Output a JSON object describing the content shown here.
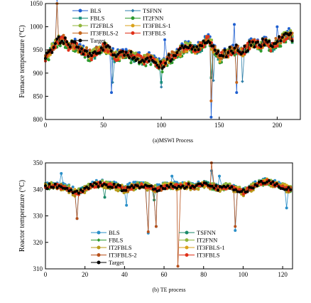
{
  "chart_data": [
    {
      "type": "line",
      "caption": "(a)MSWI Process",
      "xlabel": "",
      "ylabel": "Furnace temperature (°C)",
      "xlim": [
        0,
        220
      ],
      "ylim": [
        800,
        1050
      ],
      "xticks": [
        0,
        50,
        100,
        150,
        200
      ],
      "yticks": [
        800,
        850,
        900,
        950,
        1000,
        1050
      ],
      "legend_position": "top-left",
      "legend_columns": 2,
      "series": [
        {
          "name": "BLS",
          "color": "#1f5fd0",
          "marker": "circle",
          "offset": 4,
          "spikes": [
            [
              10,
              1060
            ],
            [
              57,
              858
            ],
            [
              103,
              972
            ],
            [
              143,
              805
            ],
            [
              163,
              1005
            ],
            [
              165,
              858
            ],
            [
              200,
              1000
            ]
          ]
        },
        {
          "name": "TSFNN",
          "color": "#2e7fa8",
          "marker": "diamond",
          "offset": 0,
          "spikes": [
            [
              58,
              880
            ],
            [
              100,
              870
            ],
            [
              145,
              884
            ],
            [
              170,
              882
            ]
          ]
        },
        {
          "name": "FBLS",
          "color": "#1a8f7a",
          "marker": "square",
          "offset": -3,
          "spikes": [
            [
              100,
              880
            ],
            [
              143,
              890
            ]
          ]
        },
        {
          "name": "IT2FNN",
          "color": "#2e9a2e",
          "marker": "circle",
          "offset": -6,
          "spikes": []
        },
        {
          "name": "IT2FBLS",
          "color": "#8fb53a",
          "marker": "circle",
          "offset": 2,
          "spikes": []
        },
        {
          "name": "IT3FBLS-1",
          "color": "#d9a21a",
          "marker": "circle",
          "offset": -2,
          "spikes": []
        },
        {
          "name": "IT3FBLS-2",
          "color": "#c4641a",
          "marker": "circle",
          "offset": 1,
          "spikes": [
            [
              10,
              1050
            ],
            [
              143,
              840
            ],
            [
              165,
              880
            ]
          ]
        },
        {
          "name": "IT3FBLS",
          "color": "#e03018",
          "marker": "circle",
          "offset": -1,
          "spikes": []
        },
        {
          "name": "Target",
          "color": "#000000",
          "marker": "circle",
          "offset": 0,
          "spikes": []
        }
      ],
      "base_x": [
        0,
        5,
        10,
        15,
        20,
        25,
        30,
        35,
        40,
        45,
        50,
        55,
        60,
        65,
        70,
        75,
        80,
        85,
        90,
        95,
        100,
        105,
        110,
        115,
        120,
        125,
        130,
        135,
        140,
        145,
        150,
        155,
        160,
        165,
        170,
        175,
        180,
        185,
        190,
        195,
        200,
        205,
        210,
        213
      ],
      "base_y": [
        935,
        950,
        970,
        975,
        958,
        962,
        950,
        945,
        938,
        948,
        958,
        950,
        935,
        940,
        945,
        935,
        932,
        928,
        935,
        925,
        915,
        930,
        938,
        945,
        955,
        958,
        950,
        960,
        975,
        955,
        935,
        942,
        948,
        952,
        945,
        958,
        965,
        960,
        970,
        955,
        968,
        975,
        985,
        978
      ]
    },
    {
      "type": "line",
      "caption": "(b) TE process",
      "xlabel": "",
      "ylabel": "Reactor temperature (°C)",
      "xlim": [
        0,
        125
      ],
      "ylim": [
        310,
        350
      ],
      "xticks": [
        0,
        20,
        40,
        60,
        80,
        100,
        120
      ],
      "yticks": [
        310,
        320,
        330,
        340,
        350
      ],
      "legend_position": "bottom-center",
      "legend_columns": 2,
      "series": [
        {
          "name": "BLS",
          "color": "#2a8fc8",
          "marker": "circle",
          "offset": 0.8,
          "spikes": [
            [
              8,
              346
            ],
            [
              16,
              329
            ],
            [
              41,
              334
            ],
            [
              52,
              323.5
            ],
            [
              56,
              326
            ],
            [
              64,
              345
            ],
            [
              84,
              347
            ],
            [
              88,
              345
            ],
            [
              96,
              324.5
            ],
            [
              122,
              333
            ]
          ]
        },
        {
          "name": "TSFNN",
          "color": "#1a8a6a",
          "marker": "circle",
          "offset": 0.3,
          "spikes": [
            [
              30,
              337
            ],
            [
              55,
              336
            ]
          ]
        },
        {
          "name": "FBLS",
          "color": "#2e9a2e",
          "marker": "diamond",
          "offset": -0.4,
          "spikes": []
        },
        {
          "name": "IT2FNN",
          "color": "#8fb53a",
          "marker": "circle",
          "offset": 0.5,
          "spikes": []
        },
        {
          "name": "IT2FBLS",
          "color": "#b89a1a",
          "marker": "circle",
          "offset": -0.6,
          "spikes": []
        },
        {
          "name": "IT3FBLS-1",
          "color": "#d9a21a",
          "marker": "circle",
          "offset": 0.2,
          "spikes": []
        },
        {
          "name": "IT3FBLS-2",
          "color": "#b8501a",
          "marker": "circle",
          "offset": -0.2,
          "spikes": [
            [
              16,
              329
            ],
            [
              52,
              324
            ],
            [
              56,
              326
            ],
            [
              67,
              311
            ],
            [
              84,
              350
            ],
            [
              96,
              326
            ]
          ]
        },
        {
          "name": "IT3FBLS",
          "color": "#e03018",
          "marker": "circle",
          "offset": -0.1,
          "spikes": []
        },
        {
          "name": "Target",
          "color": "#000000",
          "marker": "circle",
          "offset": 0,
          "spikes": []
        }
      ],
      "base_x": [
        0,
        4,
        8,
        12,
        16,
        20,
        24,
        28,
        32,
        36,
        40,
        44,
        48,
        52,
        56,
        60,
        64,
        68,
        72,
        76,
        80,
        84,
        88,
        92,
        96,
        100,
        104,
        108,
        112,
        116,
        120,
        124
      ],
      "base_y": [
        341,
        341.5,
        341,
        340,
        338.5,
        340,
        341.5,
        342,
        341.5,
        341,
        340,
        341,
        341.5,
        341,
        340,
        341,
        341.5,
        341,
        341.5,
        341,
        342,
        341,
        340.5,
        341,
        340.5,
        339,
        340.5,
        342,
        343,
        342,
        341,
        340
      ]
    }
  ]
}
